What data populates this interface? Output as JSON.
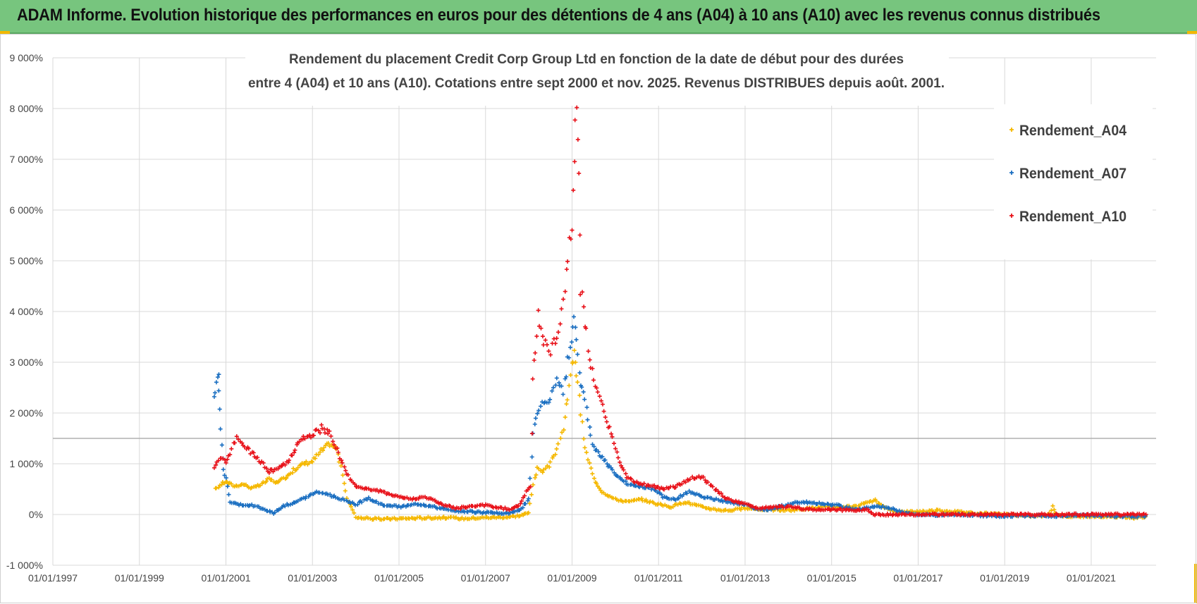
{
  "banner": {
    "title": "ADAM Informe. Evolution historique des performances en euros pour des détentions de 4 ans (A04) à 10 ans (A10) avec les revenus connus distribués"
  },
  "chart_data": {
    "type": "scatter",
    "title_lines": [
      "Rendement du placement Credit Corp Group Ltd en fonction de la date de début pour des durées",
      "entre 4 (A04) et 10 ans (A10). Cotations entre sept 2000 et nov. 2025. Revenus DISTRIBUES depuis août. 2001."
    ],
    "xlabel": "",
    "ylabel": "",
    "x_ticks": [
      "01/01/1997",
      "01/01/1999",
      "01/01/2001",
      "01/01/2003",
      "01/01/2005",
      "01/01/2007",
      "01/01/2009",
      "01/01/2011",
      "01/01/2013",
      "01/01/2015",
      "01/01/2017",
      "01/01/2019",
      "01/01/2021"
    ],
    "x_range": [
      1997.0,
      2022.5
    ],
    "y_ticks": [
      -1000,
      0,
      1000,
      2000,
      3000,
      4000,
      5000,
      6000,
      7000,
      8000,
      9000
    ],
    "y_tick_labels": [
      "-1 000%",
      "0%",
      "1 000%",
      "2 000%",
      "3 000%",
      "4 000%",
      "5 000%",
      "6 000%",
      "7 000%",
      "8 000%",
      "9 000%"
    ],
    "ylim": [
      -1000,
      9000
    ],
    "ref_line_y": 1500,
    "grid": true,
    "legend_position": "top-right",
    "series": [
      {
        "name": "Rendement_A04",
        "color": "#f5b800",
        "points": [
          [
            2000.75,
            500
          ],
          [
            2000.9,
            600
          ],
          [
            2001.0,
            650
          ],
          [
            2001.2,
            560
          ],
          [
            2001.4,
            600
          ],
          [
            2001.6,
            520
          ],
          [
            2001.8,
            580
          ],
          [
            2002.0,
            700
          ],
          [
            2002.2,
            620
          ],
          [
            2002.4,
            750
          ],
          [
            2002.6,
            900
          ],
          [
            2002.8,
            1000
          ],
          [
            2003.0,
            1050
          ],
          [
            2003.2,
            1250
          ],
          [
            2003.4,
            1400
          ],
          [
            2003.55,
            1300
          ],
          [
            2003.7,
            800
          ],
          [
            2003.8,
            300
          ],
          [
            2003.9,
            150
          ],
          [
            2004.0,
            -50
          ],
          [
            2004.3,
            -80
          ],
          [
            2004.6,
            -90
          ],
          [
            2005.0,
            -80
          ],
          [
            2005.5,
            -70
          ],
          [
            2006.0,
            -60
          ],
          [
            2006.5,
            -80
          ],
          [
            2007.0,
            -60
          ],
          [
            2007.5,
            -50
          ],
          [
            2007.8,
            -20
          ],
          [
            2008.0,
            30
          ],
          [
            2008.1,
            600
          ],
          [
            2008.2,
            900
          ],
          [
            2008.35,
            850
          ],
          [
            2008.5,
            1000
          ],
          [
            2008.65,
            1300
          ],
          [
            2008.8,
            1700
          ],
          [
            2008.9,
            2300
          ],
          [
            2009.0,
            2900
          ],
          [
            2009.05,
            3300
          ],
          [
            2009.1,
            2800
          ],
          [
            2009.2,
            2000
          ],
          [
            2009.3,
            1300
          ],
          [
            2009.4,
            1000
          ],
          [
            2009.5,
            700
          ],
          [
            2009.7,
            450
          ],
          [
            2010.0,
            300
          ],
          [
            2010.3,
            250
          ],
          [
            2010.6,
            300
          ],
          [
            2011.0,
            200
          ],
          [
            2011.3,
            150
          ],
          [
            2011.6,
            250
          ],
          [
            2012.0,
            150
          ],
          [
            2012.3,
            100
          ],
          [
            2012.6,
            80
          ],
          [
            2013.0,
            120
          ],
          [
            2013.5,
            100
          ],
          [
            2014.0,
            80
          ],
          [
            2014.5,
            120
          ],
          [
            2015.0,
            150
          ],
          [
            2015.5,
            150
          ],
          [
            2015.8,
            220
          ],
          [
            2016.0,
            280
          ],
          [
            2016.3,
            100
          ],
          [
            2016.6,
            50
          ],
          [
            2017.0,
            60
          ],
          [
            2017.5,
            80
          ],
          [
            2018.0,
            50
          ],
          [
            2018.5,
            20
          ],
          [
            2019.0,
            0
          ],
          [
            2019.5,
            -30
          ],
          [
            2020.0,
            -20
          ],
          [
            2020.1,
            150
          ],
          [
            2020.2,
            -10
          ],
          [
            2020.6,
            -40
          ],
          [
            2021.0,
            -30
          ],
          [
            2021.5,
            -50
          ],
          [
            2022.0,
            -60
          ],
          [
            2022.3,
            -40
          ]
        ]
      },
      {
        "name": "Rendement_A07",
        "color": "#1b6fc1",
        "points": [
          [
            2000.72,
            2350
          ],
          [
            2000.78,
            2600
          ],
          [
            2000.83,
            2780
          ],
          [
            2000.86,
            2100
          ],
          [
            2000.9,
            1400
          ],
          [
            2000.95,
            900
          ],
          [
            2001.0,
            700
          ],
          [
            2001.1,
            250
          ],
          [
            2001.3,
            200
          ],
          [
            2001.6,
            180
          ],
          [
            2001.9,
            100
          ],
          [
            2002.1,
            30
          ],
          [
            2002.3,
            150
          ],
          [
            2002.6,
            250
          ],
          [
            2002.9,
            350
          ],
          [
            2003.1,
            450
          ],
          [
            2003.4,
            380
          ],
          [
            2003.7,
            300
          ],
          [
            2004.0,
            200
          ],
          [
            2004.3,
            320
          ],
          [
            2004.6,
            200
          ],
          [
            2005.0,
            150
          ],
          [
            2005.3,
            200
          ],
          [
            2005.6,
            180
          ],
          [
            2006.0,
            120
          ],
          [
            2006.3,
            80
          ],
          [
            2006.6,
            60
          ],
          [
            2007.0,
            40
          ],
          [
            2007.5,
            20
          ],
          [
            2007.8,
            80
          ],
          [
            2008.0,
            300
          ],
          [
            2008.1,
            1600
          ],
          [
            2008.2,
            2000
          ],
          [
            2008.35,
            2200
          ],
          [
            2008.5,
            2300
          ],
          [
            2008.65,
            2600
          ],
          [
            2008.8,
            2400
          ],
          [
            2008.9,
            3000
          ],
          [
            2009.0,
            3300
          ],
          [
            2009.05,
            3900
          ],
          [
            2009.1,
            3500
          ],
          [
            2009.2,
            2600
          ],
          [
            2009.3,
            2200
          ],
          [
            2009.4,
            1700
          ],
          [
            2009.5,
            1300
          ],
          [
            2009.7,
            1100
          ],
          [
            2009.9,
            900
          ],
          [
            2010.1,
            700
          ],
          [
            2010.3,
            600
          ],
          [
            2010.6,
            550
          ],
          [
            2010.9,
            500
          ],
          [
            2011.1,
            350
          ],
          [
            2011.4,
            300
          ],
          [
            2011.7,
            450
          ],
          [
            2012.0,
            350
          ],
          [
            2012.3,
            300
          ],
          [
            2012.6,
            250
          ],
          [
            2013.0,
            200
          ],
          [
            2013.3,
            100
          ],
          [
            2013.6,
            100
          ],
          [
            2014.0,
            200
          ],
          [
            2014.3,
            250
          ],
          [
            2014.6,
            220
          ],
          [
            2015.0,
            200
          ],
          [
            2015.3,
            150
          ],
          [
            2015.6,
            100
          ],
          [
            2016.0,
            150
          ],
          [
            2016.3,
            150
          ],
          [
            2016.6,
            50
          ],
          [
            2017.0,
            0
          ],
          [
            2017.5,
            -10
          ],
          [
            2018.0,
            0
          ],
          [
            2018.5,
            -20
          ],
          [
            2019.0,
            -30
          ],
          [
            2019.5,
            -20
          ],
          [
            2020.0,
            -30
          ],
          [
            2020.5,
            -20
          ],
          [
            2021.0,
            -20
          ],
          [
            2021.5,
            -30
          ],
          [
            2022.0,
            -40
          ],
          [
            2022.3,
            -30
          ]
        ]
      },
      {
        "name": "Rendement_A10",
        "color": "#e8121a",
        "points": [
          [
            2000.72,
            900
          ],
          [
            2000.8,
            1000
          ],
          [
            2000.9,
            1150
          ],
          [
            2001.0,
            1000
          ],
          [
            2001.1,
            1200
          ],
          [
            2001.25,
            1550
          ],
          [
            2001.4,
            1350
          ],
          [
            2001.6,
            1200
          ],
          [
            2001.8,
            1050
          ],
          [
            2002.0,
            850
          ],
          [
            2002.2,
            900
          ],
          [
            2002.4,
            1000
          ],
          [
            2002.6,
            1300
          ],
          [
            2002.8,
            1500
          ],
          [
            2003.0,
            1550
          ],
          [
            2003.2,
            1700
          ],
          [
            2003.4,
            1600
          ],
          [
            2003.6,
            1200
          ],
          [
            2003.8,
            800
          ],
          [
            2004.0,
            550
          ],
          [
            2004.3,
            500
          ],
          [
            2004.6,
            450
          ],
          [
            2005.0,
            350
          ],
          [
            2005.3,
            300
          ],
          [
            2005.6,
            350
          ],
          [
            2006.0,
            200
          ],
          [
            2006.3,
            120
          ],
          [
            2006.6,
            150
          ],
          [
            2007.0,
            180
          ],
          [
            2007.3,
            130
          ],
          [
            2007.6,
            100
          ],
          [
            2007.8,
            200
          ],
          [
            2007.95,
            450
          ],
          [
            2008.05,
            550
          ],
          [
            2008.1,
            2700
          ],
          [
            2008.15,
            3300
          ],
          [
            2008.22,
            3900
          ],
          [
            2008.35,
            3400
          ],
          [
            2008.5,
            3200
          ],
          [
            2008.65,
            3500
          ],
          [
            2008.8,
            4200
          ],
          [
            2008.9,
            5000
          ],
          [
            2009.0,
            5800
          ],
          [
            2009.05,
            7000
          ],
          [
            2009.1,
            8200
          ],
          [
            2009.15,
            6500
          ],
          [
            2009.2,
            4500
          ],
          [
            2009.3,
            3800
          ],
          [
            2009.4,
            3100
          ],
          [
            2009.5,
            2600
          ],
          [
            2009.7,
            2100
          ],
          [
            2009.9,
            1600
          ],
          [
            2010.1,
            1000
          ],
          [
            2010.3,
            700
          ],
          [
            2010.6,
            600
          ],
          [
            2010.9,
            550
          ],
          [
            2011.1,
            500
          ],
          [
            2011.4,
            550
          ],
          [
            2011.7,
            700
          ],
          [
            2012.0,
            750
          ],
          [
            2012.3,
            500
          ],
          [
            2012.6,
            300
          ],
          [
            2013.0,
            200
          ],
          [
            2013.3,
            120
          ],
          [
            2013.6,
            150
          ],
          [
            2014.0,
            150
          ],
          [
            2014.5,
            100
          ],
          [
            2015.0,
            100
          ],
          [
            2015.5,
            80
          ],
          [
            2015.8,
            100
          ],
          [
            2016.0,
            0
          ],
          [
            2016.5,
            0
          ],
          [
            2017.0,
            0
          ],
          [
            2017.5,
            0
          ],
          [
            2018.0,
            0
          ],
          [
            2018.5,
            0
          ],
          [
            2019.0,
            0
          ],
          [
            2019.5,
            0
          ],
          [
            2020.0,
            0
          ],
          [
            2020.5,
            0
          ],
          [
            2021.0,
            0
          ],
          [
            2021.5,
            0
          ],
          [
            2022.0,
            0
          ],
          [
            2022.3,
            0
          ]
        ]
      }
    ]
  }
}
